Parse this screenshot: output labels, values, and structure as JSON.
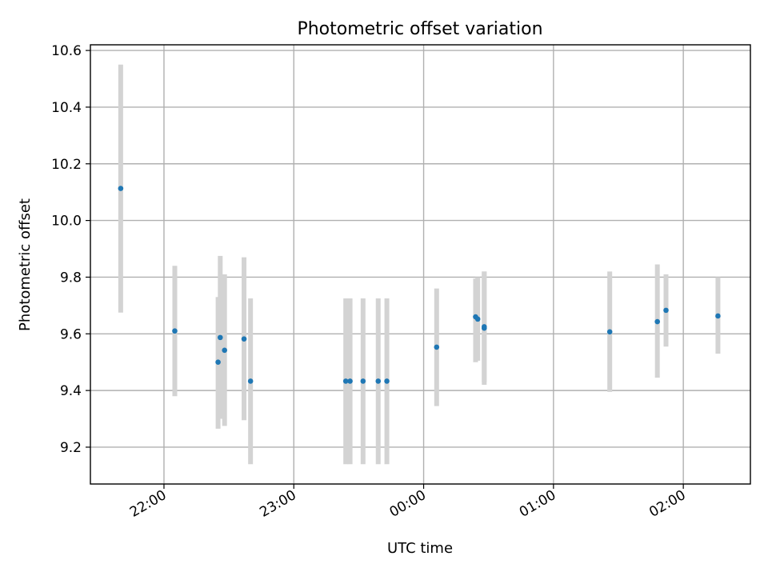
{
  "chart_data": {
    "type": "scatter",
    "title": "Photometric offset variation",
    "xlabel": "UTC time",
    "ylabel": "Photometric offset",
    "xlim": [
      "21:26",
      "02:31"
    ],
    "ylim": [
      9.07,
      10.62
    ],
    "x_ticks": [
      "22:00",
      "23:00",
      "00:00",
      "01:00",
      "02:00"
    ],
    "y_ticks": [
      "9.2",
      "9.4",
      "9.6",
      "9.8",
      "10.0",
      "10.2",
      "10.4",
      "10.6"
    ],
    "y_tick_values": [
      9.2,
      9.4,
      9.6,
      9.8,
      10.0,
      10.2,
      10.4,
      10.6
    ],
    "grid": true,
    "colors": {
      "points": "#1f77b4",
      "error_bars": "#d3d3d3"
    },
    "series": [
      {
        "points": [
          {
            "time": "21:40",
            "y": 10.113,
            "y_low": 9.675,
            "y_high": 10.55
          },
          {
            "time": "22:05",
            "y": 9.61,
            "y_low": 9.38,
            "y_high": 9.84
          },
          {
            "time": "22:25",
            "y": 9.5,
            "y_low": 9.265,
            "y_high": 9.73
          },
          {
            "time": "22:26",
            "y": 9.587,
            "y_low": 9.3,
            "y_high": 9.875
          },
          {
            "time": "22:28",
            "y": 9.542,
            "y_low": 9.275,
            "y_high": 9.81
          },
          {
            "time": "22:37",
            "y": 9.582,
            "y_low": 9.295,
            "y_high": 9.87
          },
          {
            "time": "22:40",
            "y": 9.433,
            "y_low": 9.14,
            "y_high": 9.725
          },
          {
            "time": "23:24",
            "y": 9.433,
            "y_low": 9.14,
            "y_high": 9.725
          },
          {
            "time": "23:26",
            "y": 9.433,
            "y_low": 9.14,
            "y_high": 9.725
          },
          {
            "time": "23:32",
            "y": 9.433,
            "y_low": 9.14,
            "y_high": 9.725
          },
          {
            "time": "23:39",
            "y": 9.433,
            "y_low": 9.14,
            "y_high": 9.725
          },
          {
            "time": "23:43",
            "y": 9.433,
            "y_low": 9.14,
            "y_high": 9.725
          },
          {
            "time": "00:06",
            "y": 9.553,
            "y_low": 9.345,
            "y_high": 9.76
          },
          {
            "time": "00:24",
            "y": 9.66,
            "y_low": 9.5,
            "y_high": 9.795
          },
          {
            "time": "00:25",
            "y": 9.652,
            "y_low": 9.505,
            "y_high": 9.8
          },
          {
            "time": "00:28",
            "y": 9.62,
            "y_low": 9.42,
            "y_high": 9.82
          },
          {
            "time": "00:28",
            "y": 9.625,
            "y_low": 9.43,
            "y_high": 9.82
          },
          {
            "time": "01:26",
            "y": 9.607,
            "y_low": 9.395,
            "y_high": 9.82
          },
          {
            "time": "01:48",
            "y": 9.643,
            "y_low": 9.445,
            "y_high": 9.845
          },
          {
            "time": "01:52",
            "y": 9.683,
            "y_low": 9.555,
            "y_high": 9.81
          },
          {
            "time": "02:16",
            "y": 9.663,
            "y_low": 9.53,
            "y_high": 9.8
          }
        ]
      }
    ]
  }
}
